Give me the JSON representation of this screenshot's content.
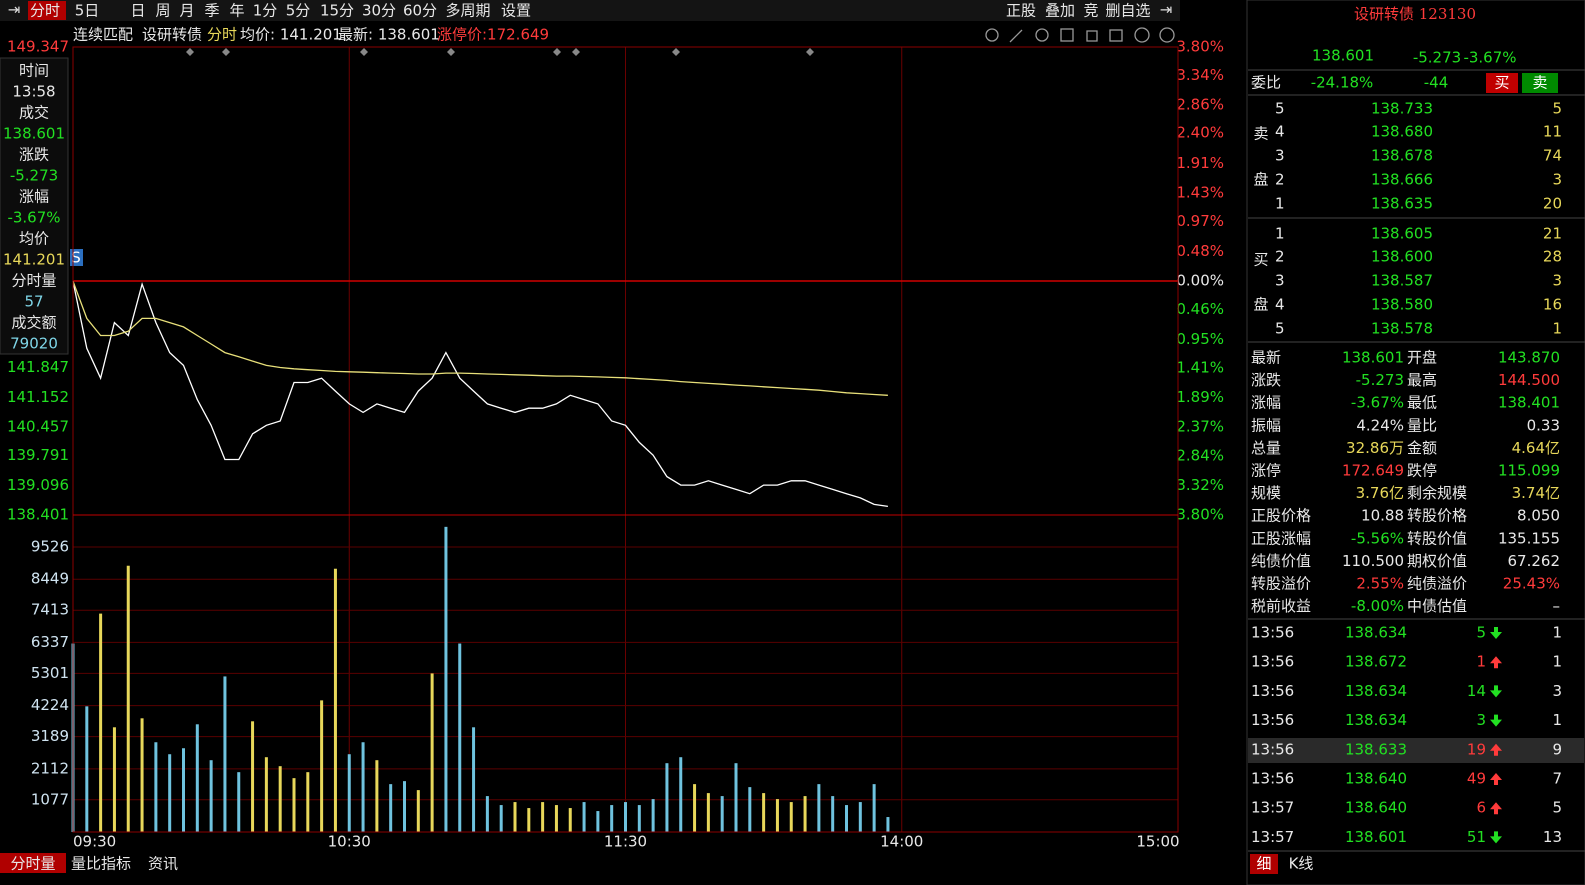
{
  "toolbar": {
    "left": [
      "分时",
      "5日",
      "日",
      "周",
      "月",
      "季",
      "年",
      "1分",
      "5分",
      "15分",
      "30分",
      "60分",
      "多周期",
      "设置"
    ],
    "right": [
      "正股",
      "叠加",
      "竞",
      "删自选"
    ]
  },
  "info": {
    "mode": "连续匹配",
    "name": "设研转债",
    "period": "分时",
    "avg": "均价: 141.201",
    "last": "最新: 138.601",
    "limit": "涨停价:172.649"
  },
  "side": [
    "时间",
    "13:58",
    "成交",
    "138.601",
    "涨跌",
    "-5.273",
    "涨幅",
    "-3.67%",
    "均价",
    "141.201",
    "分时量",
    "57",
    "成交额",
    "79020"
  ],
  "chart_data": [
    {
      "type": "line",
      "x": [
        "09:30",
        "09:33",
        "09:36",
        "09:39",
        "09:42",
        "09:45",
        "09:48",
        "09:51",
        "09:54",
        "09:57",
        "10:00",
        "10:03",
        "10:06",
        "10:09",
        "10:12",
        "10:15",
        "10:18",
        "10:21",
        "10:24",
        "10:27",
        "10:30",
        "10:33",
        "10:36",
        "10:39",
        "10:42",
        "10:45",
        "10:48",
        "10:51",
        "10:54",
        "10:57",
        "11:00",
        "11:03",
        "11:06",
        "11:09",
        "11:12",
        "11:15",
        "11:18",
        "11:21",
        "11:24",
        "11:27",
        "11:30",
        "13:03",
        "13:06",
        "13:09",
        "13:12",
        "13:15",
        "13:18",
        "13:21",
        "13:24",
        "13:27",
        "13:30",
        "13:33",
        "13:36",
        "13:39",
        "13:42",
        "13:45",
        "13:48",
        "13:51",
        "13:54",
        "13:57"
      ],
      "series": [
        {
          "color": "#ffffff",
          "values": [
            143.87,
            142.3,
            141.6,
            142.9,
            142.6,
            143.8,
            142.9,
            142.2,
            141.9,
            141.1,
            140.5,
            139.7,
            139.7,
            140.3,
            140.5,
            140.6,
            141.5,
            141.5,
            141.6,
            141.3,
            141.0,
            140.8,
            141.0,
            140.9,
            140.8,
            141.3,
            141.6,
            142.2,
            141.6,
            141.3,
            141.0,
            140.9,
            140.8,
            140.9,
            140.9,
            141.0,
            141.2,
            141.1,
            141.0,
            140.6,
            140.5,
            140.1,
            139.8,
            139.3,
            139.1,
            139.1,
            139.2,
            139.1,
            139.0,
            138.9,
            139.1,
            139.1,
            139.2,
            139.2,
            139.1,
            139.0,
            138.9,
            138.8,
            138.65,
            138.601
          ]
        },
        {
          "color": "#e8e07a",
          "values": [
            143.87,
            143.0,
            142.6,
            142.6,
            142.7,
            143.0,
            143.0,
            142.9,
            142.8,
            142.6,
            142.4,
            142.2,
            142.1,
            142.0,
            141.9,
            141.85,
            141.82,
            141.8,
            141.78,
            141.76,
            141.75,
            141.74,
            141.73,
            141.72,
            141.71,
            141.7,
            141.7,
            141.72,
            141.72,
            141.71,
            141.7,
            141.69,
            141.68,
            141.67,
            141.66,
            141.65,
            141.65,
            141.64,
            141.63,
            141.62,
            141.61,
            141.59,
            141.57,
            141.55,
            141.52,
            141.5,
            141.48,
            141.46,
            141.44,
            141.42,
            141.4,
            141.38,
            141.36,
            141.34,
            141.32,
            141.29,
            141.26,
            141.24,
            141.22,
            141.201
          ]
        }
      ],
      "ylim": [
        138.401,
        149.347
      ],
      "yticks": [
        149.347,
        141.847,
        141.152,
        140.457,
        139.791,
        139.096,
        138.401
      ],
      "y2lim": [
        -3.8,
        3.8
      ],
      "y2ticks": [
        {
          "value": 3.8,
          "label": "3.80%"
        },
        {
          "value": 3.34,
          "label": "3.34%"
        },
        {
          "value": 2.86,
          "label": "2.86%"
        },
        {
          "value": 2.4,
          "label": "2.40%"
        },
        {
          "value": 1.91,
          "label": "1.91%"
        },
        {
          "value": 1.43,
          "label": "1.43%"
        },
        {
          "value": 0.97,
          "label": "0.97%"
        },
        {
          "value": 0.48,
          "label": "0.48%"
        },
        {
          "value": 0,
          "label": "0.00%"
        },
        {
          "value": -0.46,
          "label": "0.46%"
        },
        {
          "value": -0.95,
          "label": "0.95%"
        },
        {
          "value": -1.41,
          "label": "1.41%"
        },
        {
          "value": -1.89,
          "label": "1.89%"
        },
        {
          "value": -2.37,
          "label": "2.37%"
        },
        {
          "value": -2.84,
          "label": "2.84%"
        },
        {
          "value": -3.32,
          "label": "3.32%"
        },
        {
          "value": -3.8,
          "label": "3.80%"
        }
      ],
      "xticks": [
        "09:30",
        "10:30",
        "11:30",
        "14:00",
        "15:00"
      ]
    },
    {
      "type": "bar",
      "x": [
        "09:30",
        "09:33",
        "09:36",
        "09:39",
        "09:42",
        "09:45",
        "09:48",
        "09:51",
        "09:54",
        "09:57",
        "10:00",
        "10:03",
        "10:06",
        "10:09",
        "10:12",
        "10:15",
        "10:18",
        "10:21",
        "10:24",
        "10:27",
        "10:30",
        "10:33",
        "10:36",
        "10:39",
        "10:42",
        "10:45",
        "10:48",
        "10:51",
        "10:54",
        "10:57",
        "11:00",
        "11:03",
        "11:06",
        "11:09",
        "11:12",
        "11:15",
        "11:18",
        "11:21",
        "11:24",
        "11:27",
        "11:30",
        "13:03",
        "13:06",
        "13:09",
        "13:12",
        "13:15",
        "13:18",
        "13:21",
        "13:24",
        "13:27",
        "13:30",
        "13:33",
        "13:36",
        "13:39",
        "13:42",
        "13:45",
        "13:48",
        "13:51",
        "13:54",
        "13:57"
      ],
      "values": [
        6300,
        4200,
        7300,
        3500,
        8900,
        3800,
        3000,
        2600,
        2800,
        3600,
        2400,
        5200,
        2000,
        3700,
        2500,
        2200,
        1800,
        2000,
        4400,
        8800,
        2600,
        3000,
        2400,
        1600,
        1700,
        1400,
        5300,
        10200,
        6300,
        3500,
        1200,
        900,
        1000,
        800,
        1000,
        900,
        800,
        1000,
        700,
        900,
        1000,
        900,
        1100,
        2300,
        2500,
        1600,
        1300,
        1200,
        2300,
        1500,
        1300,
        1100,
        1000,
        1200,
        1600,
        1200,
        900,
        1000,
        1600,
        500
      ],
      "colors": [
        "#6fc3df",
        "#6fc3df",
        "#e8d85a",
        "#e8d85a",
        "#e8d85a",
        "#e8d85a",
        "#6fc3df",
        "#6fc3df",
        "#6fc3df",
        "#6fc3df",
        "#6fc3df",
        "#6fc3df",
        "#6fc3df",
        "#e8d85a",
        "#e8d85a",
        "#e8d85a",
        "#e8d85a",
        "#e8d85a",
        "#e8d85a",
        "#e8d85a",
        "#6fc3df",
        "#6fc3df",
        "#e8d85a",
        "#6fc3df",
        "#6fc3df",
        "#e8d85a",
        "#e8d85a",
        "#6fc3df",
        "#6fc3df",
        "#6fc3df",
        "#6fc3df",
        "#6fc3df",
        "#e8d85a",
        "#e8d85a",
        "#e8d85a",
        "#e8d85a",
        "#e8d85a",
        "#6fc3df",
        "#6fc3df",
        "#6fc3df",
        "#6fc3df",
        "#6fc3df",
        "#6fc3df",
        "#6fc3df",
        "#6fc3df",
        "#e8d85a",
        "#e8d85a",
        "#6fc3df",
        "#6fc3df",
        "#6fc3df",
        "#e8d85a",
        "#e8d85a",
        "#e8d85a",
        "#e8d85a",
        "#6fc3df",
        "#6fc3df",
        "#6fc3df",
        "#6fc3df",
        "#6fc3df",
        "#6fc3df"
      ],
      "ylim": [
        0,
        10596
      ],
      "yticks": [
        1077,
        2112,
        3189,
        4224,
        5301,
        6337,
        7413,
        8449,
        9526
      ],
      "grid": true
    }
  ],
  "quote": {
    "name": "设研转债 123130",
    "price": "138.601",
    "change": "-5.273",
    "pct": "-3.67%"
  },
  "ratio": {
    "label": "委比",
    "pct": "-24.18%",
    "diff": "-44",
    "buy": "买",
    "sell": "卖"
  },
  "book": {
    "sell_label": [
      "卖",
      "盘"
    ],
    "buy_label": [
      "买",
      "盘"
    ],
    "sell": [
      [
        "5",
        "138.733",
        "5"
      ],
      [
        "4",
        "138.680",
        "11"
      ],
      [
        "3",
        "138.678",
        "74"
      ],
      [
        "2",
        "138.666",
        "3"
      ],
      [
        "1",
        "138.635",
        "20"
      ]
    ],
    "buy": [
      [
        "1",
        "138.605",
        "21"
      ],
      [
        "2",
        "138.600",
        "28"
      ],
      [
        "3",
        "138.587",
        "3"
      ],
      [
        "4",
        "138.580",
        "16"
      ],
      [
        "5",
        "138.578",
        "1"
      ]
    ]
  },
  "stats": [
    [
      "最新",
      "138.601",
      "开盘",
      "143.870"
    ],
    [
      "涨跌",
      "-5.273",
      "最高",
      "144.500"
    ],
    [
      "涨幅",
      "-3.67%",
      "最低",
      "138.401"
    ],
    [
      "振幅",
      "4.24%",
      "量比",
      "0.33"
    ],
    [
      "总量",
      "32.86万",
      "金额",
      "4.64亿"
    ],
    [
      "涨停",
      "172.649",
      "跌停",
      "115.099"
    ],
    [
      "规模",
      "3.76亿",
      "剩余规模",
      "3.74亿"
    ],
    [
      "正股价格",
      "10.88",
      "转股价格",
      "8.050"
    ],
    [
      "正股涨幅",
      "-5.56%",
      "转股价值",
      "135.155"
    ],
    [
      "纯债价值",
      "110.500",
      "期权价值",
      "67.262"
    ],
    [
      "转股溢价",
      "2.55%",
      "纯债溢价",
      "25.43%"
    ],
    [
      "税前收益",
      "-8.00%",
      "中债估值",
      "–"
    ]
  ],
  "trades": [
    [
      "13:56",
      "138.634",
      "5",
      "1"
    ],
    [
      "13:56",
      "138.672",
      "1",
      "1"
    ],
    [
      "13:56",
      "138.634",
      "14",
      "3"
    ],
    [
      "13:56",
      "138.634",
      "3",
      "1"
    ],
    [
      "13:56",
      "138.633",
      "19",
      "9"
    ],
    [
      "13:56",
      "138.640",
      "49",
      "7"
    ],
    [
      "13:57",
      "138.640",
      "6",
      "5"
    ],
    [
      "13:57",
      "138.601",
      "51",
      "13"
    ]
  ],
  "tabs": [
    "分时量",
    "量比指标",
    "资讯"
  ],
  "side_tabs": [
    "细",
    "K线"
  ]
}
